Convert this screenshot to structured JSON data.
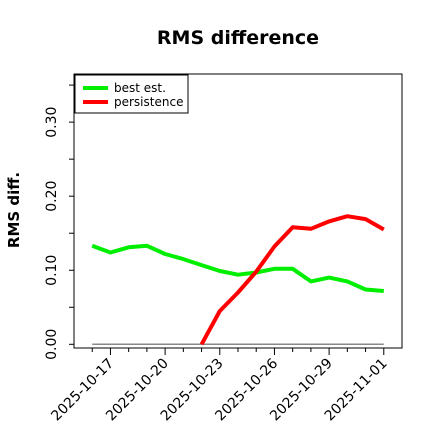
{
  "chart_data": {
    "type": "line",
    "title": "RMS difference",
    "ylabel": "RMS diff.",
    "xlabel": "",
    "x_ticks": [
      "2025-10-17",
      "2025-10-20",
      "2025-10-23",
      "2025-10-26",
      "2025-10-29",
      "2025-11-01"
    ],
    "y_ticks": [
      "0.00",
      "0.10",
      "0.20",
      "0.30"
    ],
    "ylim": [
      -0.005,
      0.365
    ],
    "xlim": [
      "2025-10-15",
      "2025-11-02"
    ],
    "legend": {
      "placement": "top-left",
      "entries": [
        "best est.",
        "persistence"
      ]
    },
    "series": [
      {
        "name": "best est.",
        "color": "#00ee00",
        "points": [
          [
            "2025-10-16",
            0.133
          ],
          [
            "2025-10-17",
            0.124
          ],
          [
            "2025-10-18",
            0.131
          ],
          [
            "2025-10-19",
            0.133
          ],
          [
            "2025-10-20",
            0.122
          ],
          [
            "2025-10-21",
            0.115
          ],
          [
            "2025-10-22",
            0.107
          ],
          [
            "2025-10-23",
            0.099
          ],
          [
            "2025-10-24",
            0.094
          ],
          [
            "2025-10-25",
            0.097
          ],
          [
            "2025-10-26",
            0.102
          ],
          [
            "2025-10-27",
            0.102
          ],
          [
            "2025-10-28",
            0.085
          ],
          [
            "2025-10-29",
            0.09
          ],
          [
            "2025-10-30",
            0.085
          ],
          [
            "2025-10-31",
            0.074
          ],
          [
            "2025-11-01",
            0.072
          ]
        ]
      },
      {
        "name": "persistence",
        "color": "#ff0000",
        "points": [
          [
            "2025-10-22",
            0.0
          ],
          [
            "2025-10-23",
            0.045
          ],
          [
            "2025-10-24",
            0.07
          ],
          [
            "2025-10-25",
            0.098
          ],
          [
            "2025-10-26",
            0.132
          ],
          [
            "2025-10-27",
            0.158
          ],
          [
            "2025-10-28",
            0.156
          ],
          [
            "2025-10-29",
            0.166
          ],
          [
            "2025-10-30",
            0.173
          ],
          [
            "2025-10-31",
            0.169
          ],
          [
            "2025-11-01",
            0.155
          ]
        ]
      }
    ],
    "reference_line": {
      "y": 0.0,
      "x_start": "2025-10-16",
      "x_end": "2025-11-01",
      "color": "#888888"
    }
  }
}
